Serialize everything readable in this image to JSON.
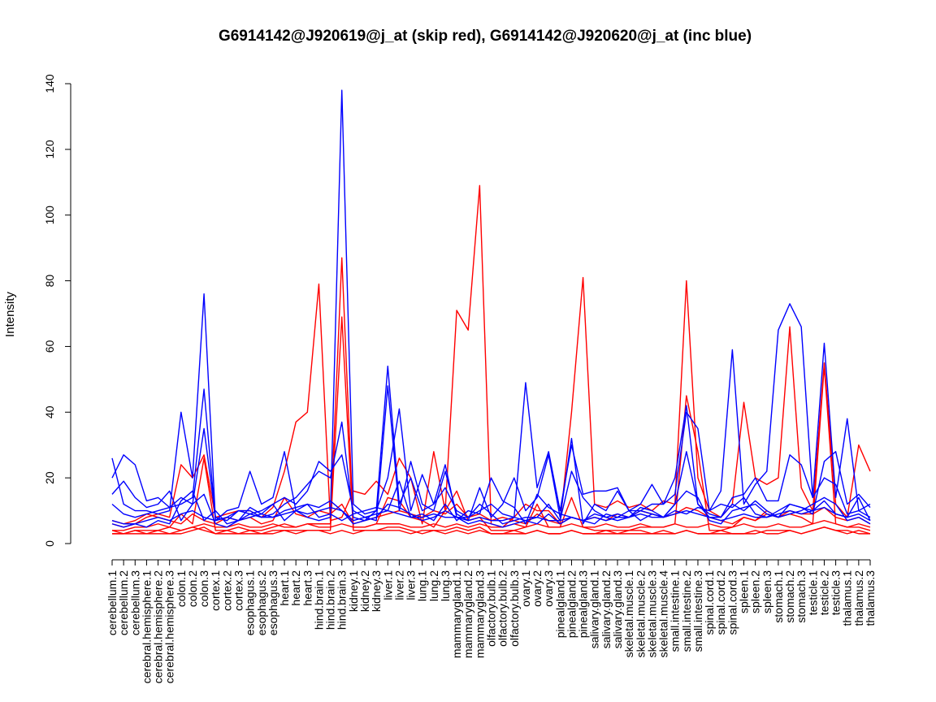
{
  "chart_data": {
    "type": "line",
    "title": "G6914142@J920619@j_at (skip red), G6914142@J920620@j_at (inc blue)",
    "xlabel": "",
    "ylabel": "Intensity",
    "ylim": [
      0,
      140
    ],
    "yticks": [
      0,
      20,
      40,
      60,
      80,
      100,
      120,
      140
    ],
    "grid": false,
    "legend": "none",
    "categories": [
      "cerebellum.1",
      "cerebellum.2",
      "cerebellum.3",
      "cerebral.hemisphere.1",
      "cerebral.hemisphere.2",
      "cerebral.hemisphere.3",
      "colon.1",
      "colon.2",
      "colon.3",
      "cortex.1",
      "cortex.2",
      "cortex.3",
      "esophagus.1",
      "esophagus.2",
      "esophagus.3",
      "heart.1",
      "heart.2",
      "heart.3",
      "hind.brain.1",
      "hind.brain.2",
      "hind.brain.3",
      "kidney.1",
      "kidney.2",
      "kidney.3",
      "liver.1",
      "liver.2",
      "liver.3",
      "lung.1",
      "lung.2",
      "lung.3",
      "mammarygland.1",
      "mammarygland.2",
      "mammarygland.3",
      "olfactory.bulb.1",
      "olfactory.bulb.2",
      "olfactory.bulb.3",
      "ovary.1",
      "ovary.2",
      "ovary.3",
      "pinealgland.1",
      "pinealgland.2",
      "pinealgland.3",
      "salivary.gland.1",
      "salivary.gland.2",
      "salivary.gland.3",
      "skeletal.muscle.1",
      "skeletal.muscle.2",
      "skeletal.muscle.3",
      "skeletal.muscle.4",
      "small.intestine.1",
      "small.intestine.2",
      "small.intestine.3",
      "spinal.cord.1",
      "spinal.cord.2",
      "spinal.cord.3",
      "spleen.1",
      "spleen.2",
      "spleen.3",
      "stomach.1",
      "stomach.2",
      "stomach.3",
      "testicle.1",
      "testicle.2",
      "testicle.3",
      "thalamus.1",
      "thalamus.2",
      "thalamus.3"
    ],
    "series": [
      {
        "color": "#ff0000",
        "values": [
          6,
          5,
          6,
          8,
          9,
          8,
          24,
          20,
          27,
          8,
          9,
          10,
          10,
          8,
          11,
          22,
          37,
          40,
          79,
          7,
          8,
          16,
          15,
          19,
          15,
          26,
          20,
          6,
          28,
          10,
          71,
          65,
          109,
          6,
          5,
          8,
          12,
          10,
          10,
          6,
          40,
          81,
          12,
          11,
          13,
          11,
          12,
          10,
          13,
          12,
          80,
          20,
          10,
          8,
          12,
          43,
          20,
          18,
          20,
          66,
          17,
          10,
          55,
          12,
          8,
          30,
          22
        ]
      },
      {
        "color": "#ff0000",
        "values": [
          4,
          3,
          4,
          4,
          4,
          5,
          9,
          6,
          26,
          4,
          4,
          5,
          4,
          4,
          5,
          6,
          5,
          6,
          6,
          6,
          87,
          5,
          5,
          6,
          14,
          13,
          8,
          7,
          5,
          10,
          16,
          7,
          8,
          4,
          4,
          4,
          5,
          12,
          5,
          5,
          14,
          5,
          4,
          4,
          4,
          4,
          5,
          5,
          5,
          6,
          45,
          28,
          4,
          4,
          5,
          8,
          7,
          10,
          8,
          9,
          8,
          6,
          54,
          6,
          5,
          5,
          4
        ]
      },
      {
        "color": "#ff0000",
        "values": [
          3,
          3,
          3,
          3,
          3,
          3,
          3,
          4,
          5,
          3,
          3,
          3,
          3,
          3,
          3,
          4,
          4,
          4,
          4,
          4,
          69,
          4,
          4,
          4,
          5,
          5,
          4,
          3,
          4,
          4,
          5,
          4,
          5,
          3,
          3,
          3,
          3,
          4,
          3,
          3,
          4,
          3,
          3,
          3,
          3,
          3,
          3,
          3,
          3,
          3,
          4,
          3,
          3,
          3,
          3,
          3,
          3,
          4,
          4,
          4,
          3,
          4,
          5,
          4,
          4,
          3,
          3
        ]
      },
      {
        "color": "#ff0000",
        "values": [
          7,
          6,
          7,
          9,
          8,
          7,
          6,
          9,
          7,
          6,
          8,
          7,
          8,
          6,
          7,
          14,
          9,
          8,
          10,
          9,
          12,
          6,
          7,
          8,
          9,
          10,
          9,
          8,
          10,
          9,
          12,
          8,
          9,
          7,
          8,
          7,
          6,
          9,
          7,
          6,
          8,
          7,
          8,
          7,
          9,
          8,
          10,
          9,
          8,
          9,
          11,
          10,
          8,
          7,
          6,
          8,
          7,
          9,
          8,
          10,
          9,
          9,
          11,
          8,
          7,
          8,
          6
        ]
      },
      {
        "color": "#ff0000",
        "values": [
          4,
          4,
          5,
          5,
          6,
          5,
          4,
          5,
          6,
          5,
          5,
          6,
          5,
          5,
          6,
          5,
          5,
          6,
          5,
          5,
          6,
          5,
          5,
          6,
          6,
          6,
          5,
          5,
          6,
          5,
          6,
          5,
          6,
          5,
          5,
          6,
          5,
          6,
          5,
          5,
          6,
          5,
          5,
          6,
          5,
          5,
          6,
          5,
          5,
          6,
          5,
          5,
          6,
          5,
          5,
          6,
          5,
          5,
          6,
          5,
          5,
          6,
          7,
          6,
          5,
          6,
          5
        ]
      },
      {
        "color": "#ff0000",
        "values": [
          3,
          3,
          4,
          3,
          4,
          3,
          4,
          5,
          4,
          3,
          4,
          3,
          4,
          3,
          4,
          4,
          3,
          4,
          4,
          3,
          4,
          3,
          4,
          4,
          4,
          4,
          3,
          4,
          4,
          3,
          4,
          3,
          4,
          3,
          3,
          4,
          3,
          4,
          3,
          3,
          4,
          3,
          3,
          4,
          3,
          4,
          4,
          3,
          4,
          3,
          4,
          3,
          3,
          4,
          3,
          3,
          4,
          3,
          3,
          4,
          3,
          4,
          5,
          4,
          3,
          4,
          3
        ]
      },
      {
        "color": "#0000ff",
        "values": [
          26,
          12,
          10,
          10,
          9,
          10,
          40,
          20,
          76,
          7,
          10,
          11,
          22,
          12,
          14,
          28,
          10,
          8,
          7,
          8,
          138,
          12,
          9,
          10,
          54,
          12,
          20,
          10,
          12,
          24,
          8,
          8,
          10,
          12,
          9,
          8,
          49,
          17,
          28,
          10,
          30,
          15,
          16,
          16,
          17,
          10,
          10,
          12,
          12,
          15,
          40,
          35,
          10,
          16,
          59,
          12,
          18,
          22,
          65,
          73,
          66,
          14,
          61,
          14,
          38,
          10,
          8
        ]
      },
      {
        "color": "#0000ff",
        "values": [
          20,
          27,
          24,
          13,
          14,
          11,
          12,
          14,
          47,
          7,
          8,
          10,
          9,
          10,
          12,
          14,
          12,
          16,
          25,
          22,
          27,
          10,
          8,
          7,
          48,
          10,
          25,
          12,
          10,
          22,
          9,
          7,
          17,
          8,
          12,
          20,
          10,
          14,
          27,
          8,
          32,
          6,
          12,
          10,
          16,
          10,
          12,
          18,
          12,
          20,
          42,
          12,
          9,
          8,
          14,
          15,
          20,
          13,
          13,
          27,
          24,
          14,
          20,
          18,
          9,
          10,
          12
        ]
      },
      {
        "color": "#0000ff",
        "values": [
          15,
          19,
          14,
          11,
          12,
          16,
          7,
          12,
          35,
          8,
          7,
          10,
          10,
          8,
          9,
          12,
          14,
          18,
          22,
          20,
          37,
          8,
          7,
          10,
          20,
          41,
          10,
          21,
          12,
          17,
          10,
          8,
          12,
          9,
          6,
          7,
          8,
          8,
          12,
          7,
          22,
          14,
          10,
          8,
          9,
          8,
          11,
          10,
          8,
          12,
          28,
          12,
          8,
          8,
          12,
          10,
          13,
          10,
          8,
          12,
          11,
          9,
          25,
          28,
          12,
          15,
          11
        ]
      },
      {
        "color": "#0000ff",
        "values": [
          12,
          9,
          8,
          9,
          10,
          11,
          14,
          12,
          15,
          6,
          5,
          7,
          8,
          9,
          8,
          10,
          11,
          12,
          11,
          13,
          10,
          6,
          7,
          8,
          12,
          11,
          9,
          7,
          8,
          10,
          8,
          6,
          7,
          6,
          5,
          6,
          7,
          6,
          9,
          6,
          8,
          7,
          9,
          8,
          7,
          8,
          10,
          9,
          8,
          12,
          16,
          14,
          7,
          6,
          10,
          11,
          12,
          9,
          8,
          9,
          10,
          12,
          14,
          12,
          7,
          8,
          6
        ]
      },
      {
        "color": "#0000ff",
        "values": [
          7,
          6,
          6,
          7,
          8,
          7,
          9,
          10,
          8,
          7,
          8,
          7,
          9,
          8,
          8,
          9,
          10,
          9,
          10,
          11,
          10,
          7,
          8,
          9,
          10,
          9,
          8,
          8,
          9,
          8,
          8,
          7,
          8,
          7,
          7,
          8,
          7,
          8,
          7,
          7,
          8,
          7,
          8,
          7,
          8,
          8,
          9,
          8,
          8,
          9,
          10,
          9,
          8,
          7,
          8,
          9,
          8,
          8,
          9,
          10,
          9,
          10,
          11,
          9,
          8,
          9,
          7
        ]
      },
      {
        "color": "#0000ff",
        "values": [
          6,
          5,
          6,
          5,
          7,
          6,
          13,
          16,
          7,
          10,
          6,
          7,
          11,
          9,
          12,
          7,
          10,
          12,
          8,
          9,
          7,
          9,
          10,
          11,
          10,
          19,
          8,
          9,
          7,
          12,
          7,
          10,
          9,
          20,
          13,
          11,
          6,
          15,
          11,
          9,
          8,
          7,
          6,
          9,
          8,
          10,
          7,
          9,
          8,
          10,
          9,
          11,
          10,
          12,
          11,
          14,
          9,
          8,
          10,
          12,
          11,
          10,
          13,
          9,
          8,
          14,
          7
        ]
      }
    ]
  }
}
